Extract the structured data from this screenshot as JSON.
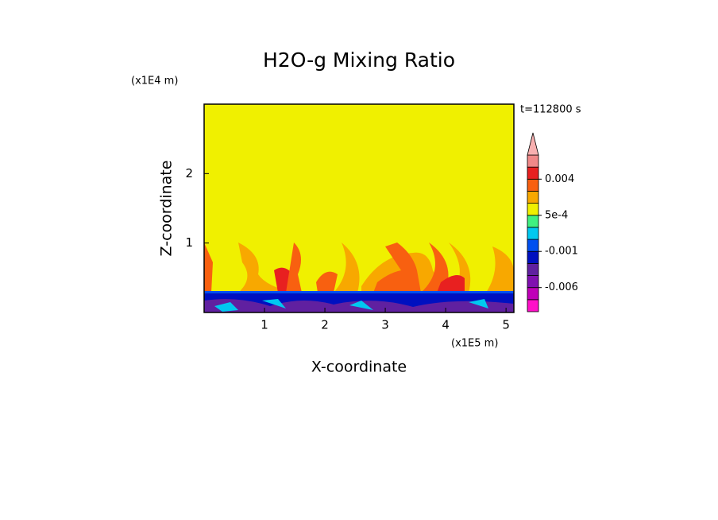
{
  "chart_data": {
    "type": "contour",
    "title": "H2O-g Mixing Ratio",
    "x_label": "X-coordinate",
    "y_label": "Z-coordinate",
    "x_unit": "(x1E5 m)",
    "y_unit": "(x1E4 m)",
    "time_label": "t=112800 s",
    "xlim": [
      0,
      5.13
    ],
    "ylim": [
      0,
      3
    ],
    "xticks": [
      1,
      2,
      3,
      4,
      5
    ],
    "yticks": [
      1,
      2
    ],
    "colorbar": {
      "levels": [
        -0.01,
        -0.008,
        -0.006,
        -0.004,
        -0.002,
        -0.001,
        -0.0005,
        0,
        0.0005,
        0.001,
        0.002,
        0.004,
        0.006,
        0.008
      ],
      "colors": [
        "#ff10c8",
        "#c000b8",
        "#8010b0",
        "#6020a0",
        "#0010c0",
        "#0050f0",
        "#00c8f0",
        "#40f080",
        "#f0f000",
        "#f8a800",
        "#f86010",
        "#e82020",
        "#f08888"
      ],
      "over_color": "#f8b0b0",
      "ticks": [
        -0.006,
        -0.001,
        {
          "value": 0.0005,
          "label": "5e-4"
        },
        0.004
      ]
    }
  }
}
